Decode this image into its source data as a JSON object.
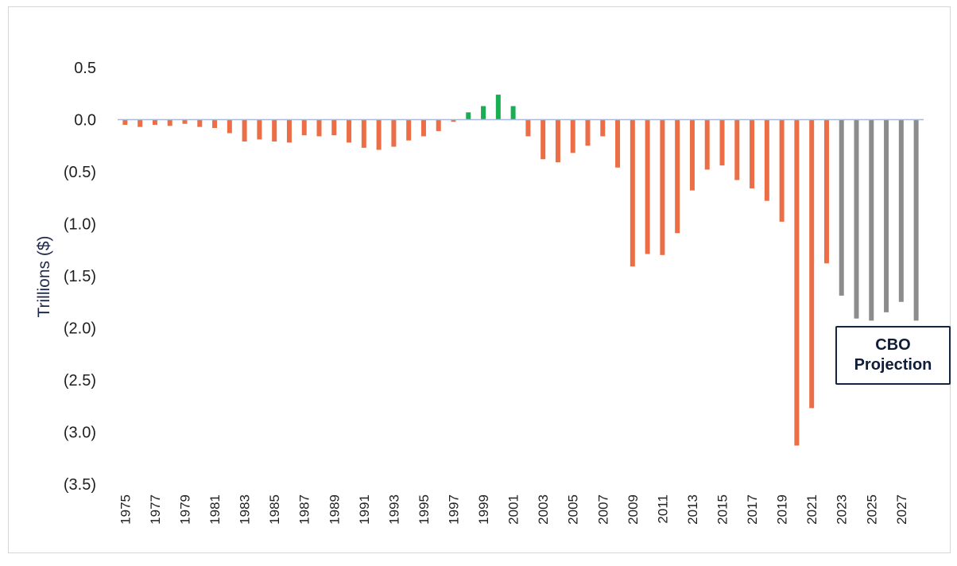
{
  "chart_data": {
    "type": "bar",
    "ylabel": "Trillions ($)",
    "ylim": [
      -3.5,
      0.5
    ],
    "yticks": [
      {
        "value": 0.5,
        "label": "0.5"
      },
      {
        "value": 0.0,
        "label": "0.0"
      },
      {
        "value": -0.5,
        "label": "(0.5)"
      },
      {
        "value": -1.0,
        "label": "(1.0)"
      },
      {
        "value": -1.5,
        "label": "(1.5)"
      },
      {
        "value": -2.0,
        "label": "(2.0)"
      },
      {
        "value": -2.5,
        "label": "(2.5)"
      },
      {
        "value": -3.0,
        "label": "(3.0)"
      },
      {
        "value": -3.5,
        "label": "(3.5)"
      }
    ],
    "xtick_labels": [
      "1975",
      "1977",
      "1979",
      "1981",
      "1983",
      "1985",
      "1987",
      "1989",
      "1991",
      "1993",
      "1995",
      "1997",
      "1999",
      "2001",
      "2003",
      "2005",
      "2007",
      "2009",
      "2011",
      "2013",
      "2015",
      "2017",
      "2019",
      "2021",
      "2023",
      "2025",
      "2027"
    ],
    "categories": [
      "1975",
      "1976",
      "1977",
      "1978",
      "1979",
      "1980",
      "1981",
      "1982",
      "1983",
      "1984",
      "1985",
      "1986",
      "1987",
      "1988",
      "1989",
      "1990",
      "1991",
      "1992",
      "1993",
      "1994",
      "1995",
      "1996",
      "1997",
      "1998",
      "1999",
      "2000",
      "2001",
      "2002",
      "2003",
      "2004",
      "2005",
      "2006",
      "2007",
      "2008",
      "2009",
      "2010",
      "2011",
      "2012",
      "2013",
      "2014",
      "2015",
      "2016",
      "2017",
      "2018",
      "2019",
      "2020",
      "2021",
      "2022",
      "2023",
      "2024",
      "2025",
      "2026",
      "2027",
      "2028"
    ],
    "values": [
      -0.05,
      -0.07,
      -0.05,
      -0.06,
      -0.04,
      -0.07,
      -0.08,
      -0.13,
      -0.21,
      -0.19,
      -0.21,
      -0.22,
      -0.15,
      -0.16,
      -0.15,
      -0.22,
      -0.27,
      -0.29,
      -0.26,
      -0.2,
      -0.16,
      -0.11,
      -0.02,
      0.07,
      0.13,
      0.24,
      0.13,
      -0.16,
      -0.38,
      -0.41,
      -0.32,
      -0.25,
      -0.16,
      -0.46,
      -1.41,
      -1.29,
      -1.3,
      -1.09,
      -0.68,
      -0.48,
      -0.44,
      -0.58,
      -0.66,
      -0.78,
      -0.98,
      -3.13,
      -2.77,
      -1.38,
      -1.69,
      -1.91,
      -1.93,
      -1.85,
      -1.75,
      -1.93
    ],
    "colors": {
      "deficit": "#ec6e47",
      "surplus": "#1aad53",
      "projection": "#8c8c8c"
    },
    "projection_start": "2023",
    "annotation": {
      "line1": "CBO",
      "line2": "Projection"
    },
    "grid": false,
    "legend": "none"
  }
}
